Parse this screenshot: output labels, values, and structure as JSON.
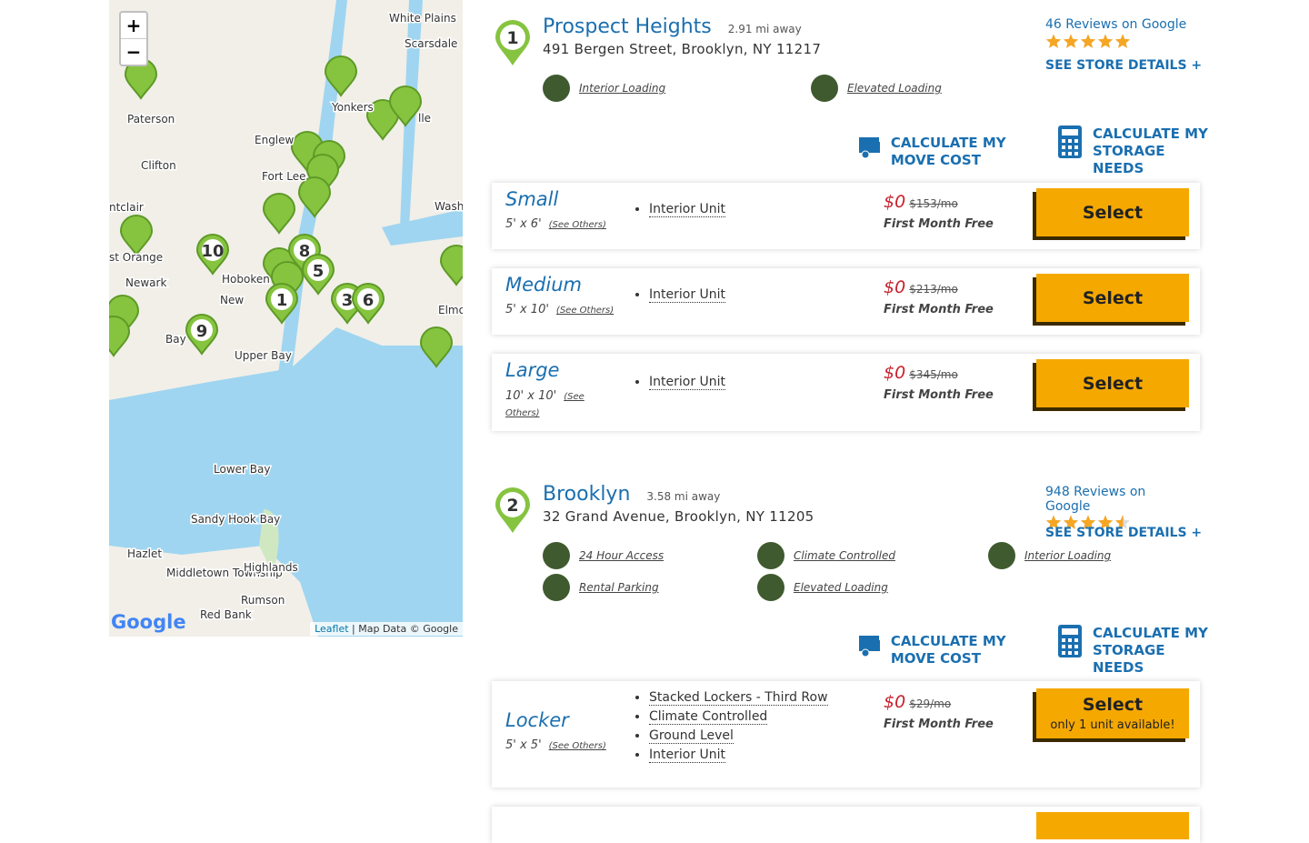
{
  "map": {
    "zoom_in": "+",
    "zoom_out": "−",
    "labels": [
      "White Plains",
      "Scarsdale",
      "Yonkers",
      "Paterson",
      "Englew",
      "Clifton",
      "Fort Lee",
      "ntclair",
      "st Orange",
      "Newark",
      "Hoboken",
      "New",
      "Bay",
      "Upper Bay",
      "Lower Bay",
      "Sandy Hook Bay",
      "Hazlet",
      "Middletown Township",
      "Highlands",
      "Rumson",
      "Red Bank",
      "Elmo",
      "Wash",
      "lle"
    ],
    "markers": [
      "10",
      "8",
      "5",
      "1",
      "3",
      "6",
      "9"
    ],
    "logo": "Google",
    "attribution_link": "Leaflet",
    "attribution_text": "| Map Data © Google"
  },
  "stores": [
    {
      "number": "1",
      "name": "Prospect Heights",
      "distance": "2.91 mi away",
      "address": "491 Bergen Street, Brooklyn, NY 11217",
      "reviews": "46 Reviews on Google",
      "rating": 5,
      "details": "SEE STORE DETAILS +",
      "features": [
        "Interior Loading",
        "Elevated Loading"
      ],
      "move_cost": "CALCULATE MY MOVE COST",
      "storage_needs": "CALCULATE MY STORAGE NEEDS",
      "units": [
        {
          "name": "Small",
          "size": "5' x 6'",
          "see_others": "(See Others)",
          "features": [
            "Interior Unit"
          ],
          "price": "$0",
          "was": "$153/mo",
          "promo": "First Month Free",
          "button": "Select"
        },
        {
          "name": "Medium",
          "size": "5' x 10'",
          "see_others": "(See Others)",
          "features": [
            "Interior Unit"
          ],
          "price": "$0",
          "was": "$213/mo",
          "promo": "First Month Free",
          "button": "Select"
        },
        {
          "name": "Large",
          "size": "10' x 10'",
          "see_others": "(See Others)",
          "features": [
            "Interior Unit"
          ],
          "price": "$0",
          "was": "$345/mo",
          "promo": "First Month Free",
          "button": "Select"
        }
      ]
    },
    {
      "number": "2",
      "name": "Brooklyn",
      "distance": "3.58 mi away",
      "address": "32 Grand Avenue, Brooklyn, NY 11205",
      "reviews": "948 Reviews on Google",
      "rating": 4.5,
      "details": "SEE STORE DETAILS +",
      "features": [
        "24 Hour Access",
        "Climate Controlled",
        "Interior Loading",
        "Rental Parking",
        "Elevated Loading"
      ],
      "move_cost": "CALCULATE MY MOVE COST",
      "storage_needs": "CALCULATE MY STORAGE NEEDS",
      "units": [
        {
          "name": "Locker",
          "size": "5' x 5'",
          "see_others": "(See Others)",
          "features": [
            "Stacked Lockers - Third Row",
            "Climate Controlled",
            "Ground Level",
            "Interior Unit"
          ],
          "price": "$0",
          "was": "$29/mo",
          "promo": "First Month Free",
          "button": "Select",
          "availability": "only 1 unit available!"
        }
      ]
    }
  ]
}
